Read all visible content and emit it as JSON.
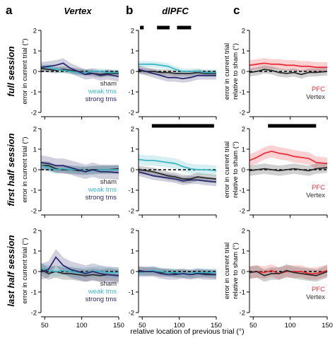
{
  "colors": {
    "sham": "#2b2b2b",
    "weak": "#3fb7c4",
    "strong": "#2a2a6e",
    "pfc": "#e8303a",
    "vertex": "#2b2b2b",
    "sig_bar": "#000000"
  },
  "figure": {
    "panel_letters": [
      "a",
      "b",
      "c"
    ],
    "column_titles": [
      "Vertex",
      "dlPFC",
      ""
    ],
    "row_titles": [
      "full session",
      "first half session",
      "last half session"
    ],
    "ylabel_ab": "error in current trial (°)",
    "ylabel_c_line1": "error in current trial",
    "ylabel_c_line2": "relative to sham (°)",
    "xlabel": "relative location of previous trial (°)",
    "legend_ab": [
      "sham",
      "weak tms",
      "strong tms"
    ],
    "legend_c": [
      "PFC",
      "Vertex"
    ],
    "x_ticks": [
      "50",
      "100",
      "150"
    ],
    "y_ticks_ab": [
      "2",
      "1",
      "0",
      "-1",
      "-2"
    ],
    "y_ticks_c": [
      "2",
      "1",
      "0",
      "-1",
      "-2"
    ]
  },
  "chart_data": [
    {
      "type": "line",
      "panel": "a-full-session",
      "xlim": [
        45,
        150
      ],
      "ylim": [
        -2,
        2
      ],
      "dashed_zero": true,
      "x": [
        45,
        55,
        65,
        75,
        85,
        95,
        105,
        115,
        125,
        135,
        150
      ],
      "series": [
        {
          "name": "sham",
          "values": [
            0.15,
            0.1,
            0.05,
            0.1,
            0.05,
            0.0,
            -0.05,
            -0.1,
            -0.15,
            -0.1,
            -0.1
          ],
          "band": 0.15
        },
        {
          "name": "weak tms",
          "values": [
            0.2,
            0.2,
            0.1,
            0.05,
            0.0,
            -0.05,
            -0.05,
            0.0,
            0.0,
            -0.05,
            -0.05
          ],
          "band": 0.15
        },
        {
          "name": "strong tms",
          "values": [
            0.2,
            0.25,
            0.3,
            0.4,
            0.15,
            0.0,
            -0.15,
            -0.1,
            -0.2,
            -0.15,
            -0.25
          ],
          "band": 0.25
        }
      ]
    },
    {
      "type": "line",
      "panel": "b-full-session",
      "xlim": [
        45,
        150
      ],
      "ylim": [
        -2,
        2
      ],
      "dashed_zero": true,
      "sig_bars": [
        [
          47,
          52
        ],
        [
          70,
          87
        ],
        [
          97,
          116
        ]
      ],
      "x": [
        45,
        55,
        65,
        75,
        85,
        95,
        105,
        115,
        125,
        135,
        150
      ],
      "series": [
        {
          "name": "sham",
          "values": [
            0.05,
            0.0,
            0.0,
            -0.05,
            -0.05,
            -0.1,
            -0.1,
            -0.1,
            -0.05,
            -0.1,
            -0.1
          ],
          "band": 0.15
        },
        {
          "name": "weak tms",
          "values": [
            0.35,
            0.35,
            0.35,
            0.3,
            0.25,
            0.1,
            0.0,
            0.0,
            0.0,
            -0.05,
            -0.05
          ],
          "band": 0.15
        },
        {
          "name": "strong tms",
          "values": [
            0.1,
            0.0,
            -0.1,
            -0.2,
            -0.3,
            -0.3,
            -0.35,
            -0.3,
            -0.2,
            -0.2,
            -0.2
          ],
          "band": 0.2
        }
      ]
    },
    {
      "type": "line",
      "panel": "c-full-session",
      "xlim": [
        45,
        150
      ],
      "ylim": [
        -2,
        2
      ],
      "dashed_zero": true,
      "x": [
        45,
        55,
        65,
        75,
        85,
        95,
        105,
        115,
        125,
        135,
        150
      ],
      "series": [
        {
          "name": "PFC",
          "values": [
            0.3,
            0.35,
            0.4,
            0.35,
            0.35,
            0.3,
            0.3,
            0.25,
            0.25,
            0.2,
            0.2
          ],
          "band": 0.25
        },
        {
          "name": "Vertex",
          "values": [
            -0.05,
            0.0,
            0.1,
            0.05,
            -0.05,
            -0.1,
            -0.05,
            -0.15,
            -0.05,
            -0.05,
            0.0
          ],
          "band": 0.2
        }
      ]
    },
    {
      "type": "line",
      "panel": "a-first-half-session",
      "xlim": [
        45,
        150
      ],
      "ylim": [
        -2,
        2
      ],
      "dashed_zero": true,
      "x": [
        45,
        55,
        65,
        75,
        85,
        95,
        105,
        115,
        125,
        135,
        150
      ],
      "series": [
        {
          "name": "sham",
          "values": [
            0.2,
            0.2,
            0.05,
            0.0,
            0.0,
            -0.05,
            -0.05,
            0.0,
            0.0,
            0.0,
            0.05
          ],
          "band": 0.2
        },
        {
          "name": "weak tms",
          "values": [
            0.2,
            0.1,
            0.0,
            0.05,
            0.0,
            0.0,
            -0.05,
            -0.05,
            0.0,
            0.0,
            0.0
          ],
          "band": 0.2
        },
        {
          "name": "strong tms",
          "values": [
            0.35,
            0.3,
            0.2,
            0.2,
            0.1,
            0.0,
            -0.1,
            0.0,
            -0.1,
            -0.1,
            -0.15
          ],
          "band": 0.35
        }
      ]
    },
    {
      "type": "line",
      "panel": "b-first-half-session",
      "xlim": [
        45,
        150
      ],
      "ylim": [
        -2,
        2
      ],
      "dashed_zero": true,
      "sig_bars": [
        [
          63,
          147
        ]
      ],
      "x": [
        45,
        55,
        65,
        75,
        85,
        95,
        105,
        115,
        125,
        135,
        150
      ],
      "series": [
        {
          "name": "sham",
          "values": [
            0.0,
            -0.05,
            -0.1,
            -0.2,
            -0.3,
            -0.35,
            -0.45,
            -0.45,
            -0.35,
            -0.4,
            -0.45
          ],
          "band": 0.2
        },
        {
          "name": "weak tms",
          "values": [
            0.5,
            0.45,
            0.45,
            0.4,
            0.35,
            0.3,
            0.15,
            0.05,
            0.0,
            0.0,
            -0.05
          ],
          "band": 0.25
        },
        {
          "name": "strong tms",
          "values": [
            -0.1,
            -0.2,
            -0.3,
            -0.35,
            -0.4,
            -0.45,
            -0.55,
            -0.5,
            -0.5,
            -0.55,
            -0.6
          ],
          "band": 0.2
        }
      ]
    },
    {
      "type": "line",
      "panel": "c-first-half-session",
      "xlim": [
        45,
        150
      ],
      "ylim": [
        -2,
        2
      ],
      "dashed_zero": true,
      "sig_bars": [
        [
          70,
          135
        ]
      ],
      "x": [
        45,
        55,
        65,
        75,
        85,
        95,
        105,
        115,
        125,
        135,
        150
      ],
      "series": [
        {
          "name": "PFC",
          "values": [
            0.45,
            0.6,
            0.8,
            0.9,
            0.8,
            0.75,
            0.65,
            0.6,
            0.55,
            0.35,
            0.3
          ],
          "band": 0.3
        },
        {
          "name": "Vertex",
          "values": [
            -0.05,
            0.0,
            0.05,
            0.0,
            -0.05,
            0.0,
            0.05,
            0.0,
            -0.05,
            0.05,
            0.1
          ],
          "band": 0.25
        }
      ]
    },
    {
      "type": "line",
      "panel": "a-last-half-session",
      "xlim": [
        45,
        150
      ],
      "ylim": [
        -2,
        2
      ],
      "dashed_zero": true,
      "x": [
        45,
        55,
        65,
        75,
        85,
        95,
        105,
        115,
        125,
        135,
        150
      ],
      "series": [
        {
          "name": "sham",
          "values": [
            0.1,
            -0.1,
            0.0,
            -0.1,
            -0.1,
            -0.15,
            -0.2,
            -0.15,
            -0.2,
            -0.15,
            -0.2
          ],
          "band": 0.3
        },
        {
          "name": "weak tms",
          "values": [
            0.15,
            0.05,
            0.0,
            0.05,
            0.0,
            -0.05,
            -0.05,
            0.0,
            0.0,
            -0.05,
            -0.05
          ],
          "band": 0.25
        },
        {
          "name": "strong tms",
          "values": [
            0.0,
            0.1,
            0.7,
            0.3,
            0.1,
            0.0,
            -0.1,
            0.0,
            -0.1,
            -0.15,
            -0.2
          ],
          "band": 0.4
        }
      ]
    },
    {
      "type": "line",
      "panel": "b-last-half-session",
      "xlim": [
        45,
        150
      ],
      "ylim": [
        -2,
        2
      ],
      "dashed_zero": true,
      "x": [
        45,
        55,
        65,
        75,
        85,
        95,
        105,
        115,
        125,
        135,
        150
      ],
      "series": [
        {
          "name": "sham",
          "values": [
            0.05,
            0.0,
            0.0,
            -0.05,
            -0.05,
            -0.1,
            -0.1,
            -0.15,
            -0.1,
            -0.1,
            -0.15
          ],
          "band": 0.2
        },
        {
          "name": "weak tms",
          "values": [
            -0.05,
            0.0,
            0.05,
            0.0,
            -0.05,
            -0.05,
            -0.1,
            -0.1,
            -0.05,
            -0.05,
            -0.05
          ],
          "band": 0.2
        },
        {
          "name": "strong tms",
          "values": [
            0.0,
            0.0,
            0.0,
            -0.1,
            -0.15,
            -0.15,
            -0.1,
            -0.15,
            -0.1,
            -0.15,
            -0.15
          ],
          "band": 0.25
        }
      ]
    },
    {
      "type": "line",
      "panel": "c-last-half-session",
      "xlim": [
        45,
        150
      ],
      "ylim": [
        -2,
        2
      ],
      "dashed_zero": true,
      "x": [
        45,
        55,
        65,
        75,
        85,
        95,
        105,
        115,
        125,
        135,
        150
      ],
      "series": [
        {
          "name": "PFC",
          "values": [
            -0.05,
            0.0,
            -0.05,
            0.05,
            -0.1,
            0.0,
            0.0,
            0.0,
            -0.1,
            -0.1,
            0.05
          ],
          "band": 0.3
        },
        {
          "name": "Vertex",
          "values": [
            -0.05,
            0.0,
            -0.2,
            -0.1,
            -0.1,
            0.05,
            -0.05,
            -0.1,
            -0.15,
            -0.2,
            0.0
          ],
          "band": 0.3
        }
      ]
    }
  ]
}
